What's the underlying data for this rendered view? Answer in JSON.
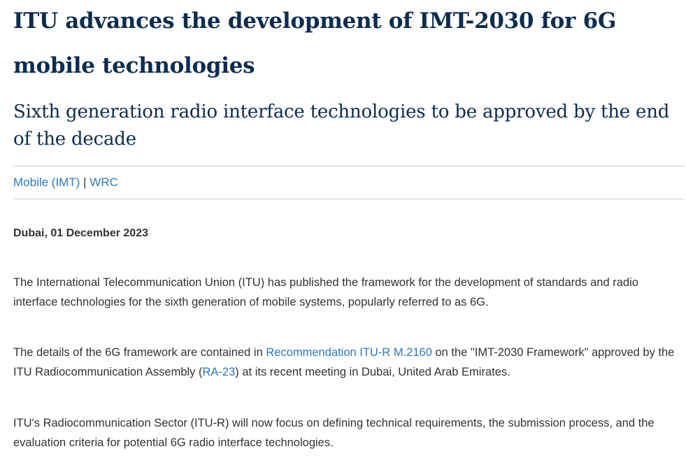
{
  "article": {
    "headline": "ITU advances the development of IMT-2030 for 6G mobile technologies",
    "subtitle": "Sixth generation radio interface technologies to be approved by the end of the decade",
    "tags": [
      {
        "label": "Mobile (IMT)"
      },
      {
        "label": "WRC"
      }
    ],
    "tag_separator": "|",
    "dateline": "Dubai, 01 December 2023",
    "paragraphs": {
      "p1": "The International Telecommunication Union (ITU) has published the framework for the development of standards and radio interface technologies for the sixth generation of mobile systems, popularly referred to as 6G.",
      "p2": {
        "part1": "The details of the 6G framework are contained in ",
        "link1": "Recommendation ITU-R M.2160",
        "part2": " on the \"IMT-2030 Framework\" approved by the ITU Radiocommunication Assembly (",
        "link2": "RA-23",
        "part3": ") at its recent meeting in Dubai, United Arab Emirates."
      },
      "p3": "ITU's Radiocommunication Sector (ITU-R) will now focus on defining technical requirements, the submission process, and the evaluation criteria for potential 6G radio interface technologies."
    }
  },
  "colors": {
    "headline": "#0d2c4e",
    "link": "#2e78b8",
    "body_text": "#333333",
    "divider": "#d0d0d0"
  }
}
